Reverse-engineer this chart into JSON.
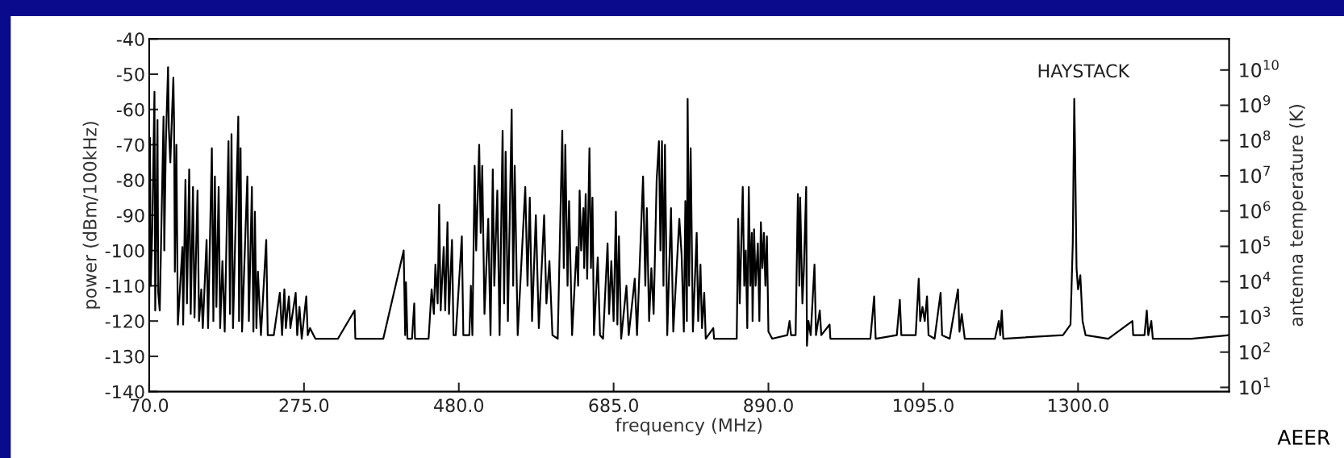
{
  "chart_data": {
    "type": "line",
    "xlabel": "frequency (MHz)",
    "ylabel": "power (dBm/100kHz)",
    "y2label": "antenna temperature (K)",
    "annotations": [
      "HAYSTACK",
      "AEER"
    ],
    "xlim": [
      70,
      1500
    ],
    "ylim": [
      -140,
      -40
    ],
    "y2lim": [
      7.6,
      76000000000
    ],
    "log": "y2",
    "xticks": [
      {
        "value": 70,
        "label": "70.0"
      },
      {
        "value": 275,
        "label": "275.0"
      },
      {
        "value": 480,
        "label": "480.0"
      },
      {
        "value": 685,
        "label": "685.0"
      },
      {
        "value": 890,
        "label": "890.0"
      },
      {
        "value": 1095,
        "label": "1095.0"
      },
      {
        "value": 1300,
        "label": "1300.0"
      }
    ],
    "yticks": [
      -140,
      -130,
      -120,
      -110,
      -100,
      -90,
      -80,
      -70,
      -60,
      -50,
      -40
    ],
    "y2ticks": [
      {
        "value": 10,
        "label": "10$^{1}$"
      },
      {
        "value": 100,
        "label": "10$^{2}$"
      },
      {
        "value": 1000,
        "label": "10$^{3}$"
      },
      {
        "value": 10000,
        "label": "10$^{4}$"
      },
      {
        "value": 100000,
        "label": "10$^{5}$"
      },
      {
        "value": 1000000,
        "label": "10$^{6}$"
      },
      {
        "value": 10000000,
        "label": "10$^{7}$"
      },
      {
        "value": 100000000,
        "label": "10$^{8}$"
      },
      {
        "value": 1000000000,
        "label": "10$^{9}$"
      },
      {
        "value": 10000000000,
        "label": "10$^{10}$"
      }
    ],
    "grid": false,
    "marker": "none",
    "line_style": "solid",
    "series": [
      {
        "color": "#000000",
        "x": [
          70,
          71,
          72,
          74,
          77,
          78,
          79,
          81,
          82,
          84,
          86,
          89,
          90,
          92,
          95,
          96,
          98,
          102,
          103,
          104,
          106,
          108,
          111,
          114,
          115,
          118,
          120,
          123,
          125,
          128,
          130,
          134,
          136,
          139,
          141,
          146,
          148,
          153,
          155,
          157,
          159,
          162,
          164,
          167,
          170,
          175,
          177,
          179,
          181,
          188,
          189,
          191,
          193,
          200,
          202,
          206,
          208,
          210,
          212,
          214,
          218,
          225,
          227,
          235,
          243,
          246,
          249,
          251,
          255,
          257,
          264,
          266,
          269,
          272,
          278,
          280,
          283,
          290,
          320,
          342,
          343,
          380,
          407,
          409,
          410,
          412,
          418,
          421,
          422,
          440,
          444,
          447,
          449,
          452,
          454,
          456,
          460,
          462,
          465,
          467,
          471,
          473,
          476,
          484,
          486,
          494,
          496,
          498,
          501,
          503,
          507,
          509,
          511,
          514,
          519,
          522,
          525,
          527,
          531,
          534,
          538,
          540,
          542,
          545,
          550,
          552,
          554,
          558,
          568,
          571,
          574,
          577,
          582,
          586,
          593,
          596,
          600,
          604,
          611,
          617,
          619,
          621,
          624,
          626,
          630,
          636,
          638,
          640,
          642,
          645,
          646,
          648,
          650,
          653,
          655,
          657,
          659,
          664,
          667,
          671,
          677,
          679,
          682,
          685,
          688,
          690,
          692,
          695,
          702,
          705,
          713,
          716,
          724,
          727,
          729,
          732,
          735,
          738,
          742,
          745,
          747,
          749,
          751,
          753,
          756,
          761,
          764,
          772,
          775,
          778,
          780,
          782,
          783,
          785,
          787,
          790,
          795,
          797,
          800,
          802,
          805,
          807,
          817,
          818,
          848,
          850,
          852,
          856,
          858,
          860,
          862,
          864,
          866,
          868,
          869,
          871,
          873,
          876,
          878,
          880,
          882,
          884,
          886,
          888,
          890,
          895,
          915,
          918,
          920,
          926,
          929,
          931,
          932,
          935,
          937,
          940,
          941,
          943,
          946,
          951,
          953,
          958,
          960,
          971,
          972,
          1025,
          1030,
          1032,
          1060,
          1064,
          1066,
          1085,
          1089,
          1091,
          1094,
          1097,
          1100,
          1102,
          1110,
          1118,
          1120,
          1130,
          1141,
          1143,
          1146,
          1150,
          1190,
          1195,
          1197,
          1199,
          1201,
          1280,
          1290,
          1293,
          1295,
          1296,
          1298,
          1300,
          1303,
          1306,
          1310,
          1340,
          1372,
          1373,
          1388,
          1391,
          1393,
          1397,
          1399,
          1450,
          1500
        ],
        "values": [
          -118,
          -68,
          -110,
          -95,
          -55,
          -117,
          -100,
          -63,
          -112,
          -117,
          -95,
          -62,
          -100,
          -70,
          -48,
          -65,
          -75,
          -51,
          -64,
          -106,
          -70,
          -121,
          -110,
          -99,
          -121,
          -80,
          -115,
          -77,
          -118,
          -82,
          -119,
          -83,
          -120,
          -111,
          -122,
          -97,
          -122,
          -71,
          -120,
          -79,
          -116,
          -82,
          -122,
          -103,
          -123,
          -69,
          -118,
          -67,
          -122,
          -62,
          -120,
          -71,
          -123,
          -79,
          -120,
          -82,
          -123,
          -89,
          -122,
          -106,
          -124,
          -97,
          -124,
          -124,
          -112,
          -124,
          -111,
          -122,
          -113,
          -122,
          -112,
          -124,
          -116,
          -125,
          -113,
          -124,
          -122,
          -125,
          -125,
          -117,
          -125,
          -125,
          -100,
          -124,
          -109,
          -125,
          -125,
          -115,
          -125,
          -125,
          -111,
          -118,
          -104,
          -115,
          -87,
          -117,
          -99,
          -117,
          -92,
          -118,
          -97,
          -124,
          -124,
          -96,
          -124,
          -124,
          -110,
          -124,
          -76,
          -100,
          -70,
          -95,
          -76,
          -118,
          -91,
          -124,
          -77,
          -110,
          -83,
          -124,
          -66,
          -115,
          -72,
          -120,
          -60,
          -110,
          -76,
          -124,
          -82,
          -110,
          -85,
          -120,
          -90,
          -122,
          -90,
          -115,
          -103,
          -124,
          -125,
          -66,
          -105,
          -70,
          -110,
          -86,
          -124,
          -99,
          -110,
          -83,
          -100,
          -88,
          -105,
          -84,
          -108,
          -71,
          -105,
          -85,
          -124,
          -102,
          -124,
          -125,
          -98,
          -118,
          -103,
          -120,
          -89,
          -121,
          -96,
          -125,
          -110,
          -124,
          -108,
          -124,
          -79,
          -110,
          -88,
          -120,
          -105,
          -118,
          -80,
          -69,
          -100,
          -69,
          -110,
          -70,
          -124,
          -88,
          -123,
          -91,
          -101,
          -123,
          -86,
          -120,
          -57,
          -110,
          -71,
          -123,
          -95,
          -120,
          -104,
          -122,
          -112,
          -125,
          -122,
          -125,
          -125,
          -91,
          -115,
          -82,
          -110,
          -100,
          -122,
          -82,
          -110,
          -95,
          -120,
          -94,
          -110,
          -98,
          -120,
          -92,
          -105,
          -95,
          -110,
          -96,
          -123,
          -125,
          -124,
          -120,
          -124,
          -124,
          -84,
          -110,
          -85,
          -115,
          -105,
          -82,
          -127,
          -120,
          -124,
          -104,
          -124,
          -117,
          -124,
          -121,
          -125,
          -125,
          -113,
          -125,
          -124,
          -114,
          -124,
          -124,
          -108,
          -120,
          -116,
          -120,
          -113,
          -124,
          -125,
          -112,
          -124,
          -125,
          -111,
          -123,
          -118,
          -125,
          -125,
          -120,
          -124,
          -117,
          -125,
          -124,
          -121,
          -98,
          -57,
          -71,
          -105,
          -111,
          -107,
          -120,
          -124,
          -125,
          -120,
          -124,
          -124,
          -117,
          -124,
          -120,
          -125,
          -125,
          -124
        ]
      }
    ]
  }
}
